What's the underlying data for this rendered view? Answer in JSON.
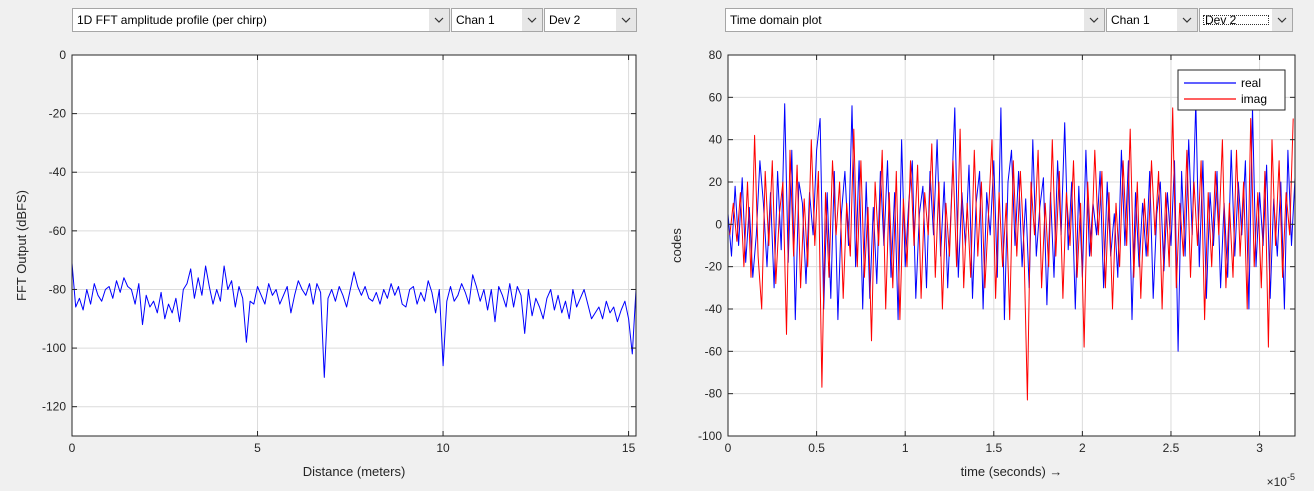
{
  "colors": {
    "real": "#0000ff",
    "imag": "#ff0000",
    "grid": "#dcdcdc",
    "axis": "#262626",
    "plot_bg": "#ffffff",
    "window_bg": "#f0f0f0"
  },
  "left_panel": {
    "plot_type_select": {
      "value": "1D FFT amplitude profile (per chirp)"
    },
    "channel_select": {
      "value": "Chan 1"
    },
    "device_select": {
      "value": "Dev 2"
    },
    "icons": {
      "dropdown": "chevron-down-icon"
    }
  },
  "right_panel": {
    "plot_type_select": {
      "value": "Time domain plot"
    },
    "channel_select": {
      "value": "Chan 1"
    },
    "device_select": {
      "value": "Dev 2"
    },
    "icons": {
      "dropdown": "chevron-down-icon"
    }
  },
  "chart_data": [
    {
      "type": "line",
      "xlabel": "Distance (meters)",
      "ylabel": "FFT Output (dBFS)",
      "xlim": [
        0,
        15.2
      ],
      "ylim": [
        -130,
        0
      ],
      "xticks": [
        0,
        5,
        10,
        15
      ],
      "xtick_labels": [
        "0",
        "5",
        "10",
        "15"
      ],
      "yticks": [
        0,
        -20,
        -40,
        -60,
        -80,
        -100,
        -120
      ],
      "ytick_labels": [
        "0",
        "-20",
        "-40",
        "-60",
        "-80",
        "-100",
        "-120"
      ],
      "grid": true,
      "series": [
        {
          "color": "#0000ff",
          "x": [
            0,
            0.1,
            0.2,
            0.3,
            0.4,
            0.5,
            0.6,
            0.7,
            0.8,
            0.9,
            1.0,
            1.1,
            1.2,
            1.3,
            1.4,
            1.5,
            1.6,
            1.7,
            1.8,
            1.9,
            2.0,
            2.1,
            2.2,
            2.3,
            2.4,
            2.5,
            2.6,
            2.7,
            2.8,
            2.9,
            3.0,
            3.1,
            3.2,
            3.3,
            3.4,
            3.5,
            3.6,
            3.7,
            3.8,
            3.9,
            4.0,
            4.1,
            4.2,
            4.3,
            4.4,
            4.5,
            4.6,
            4.7,
            4.8,
            4.9,
            5.0,
            5.1,
            5.2,
            5.3,
            5.4,
            5.5,
            5.6,
            5.7,
            5.8,
            5.9,
            6.0,
            6.1,
            6.2,
            6.3,
            6.4,
            6.5,
            6.6,
            6.7,
            6.8,
            6.9,
            7.0,
            7.1,
            7.2,
            7.3,
            7.4,
            7.5,
            7.6,
            7.7,
            7.8,
            7.9,
            8.0,
            8.1,
            8.2,
            8.3,
            8.4,
            8.5,
            8.6,
            8.7,
            8.8,
            8.9,
            9.0,
            9.1,
            9.2,
            9.3,
            9.4,
            9.5,
            9.6,
            9.7,
            9.8,
            9.9,
            10.0,
            10.1,
            10.2,
            10.3,
            10.4,
            10.5,
            10.6,
            10.7,
            10.8,
            10.9,
            11.0,
            11.1,
            11.2,
            11.3,
            11.4,
            11.5,
            11.6,
            11.7,
            11.8,
            11.9,
            12.0,
            12.1,
            12.2,
            12.3,
            12.4,
            12.5,
            12.6,
            12.7,
            12.8,
            12.9,
            13.0,
            13.1,
            13.2,
            13.3,
            13.4,
            13.5,
            13.6,
            13.7,
            13.8,
            13.9,
            14.0,
            14.1,
            14.2,
            14.3,
            14.4,
            14.5,
            14.6,
            14.7,
            14.8,
            14.9,
            15.0,
            15.1,
            15.2
          ],
          "y": [
            -71,
            -86,
            -83,
            -87,
            -80,
            -85,
            -78,
            -82,
            -84,
            -80,
            -79,
            -83,
            -77,
            -81,
            -76,
            -79,
            -80,
            -85,
            -78,
            -92,
            -82,
            -86,
            -84,
            -88,
            -81,
            -90,
            -85,
            -88,
            -83,
            -91,
            -80,
            -78,
            -73,
            -83,
            -76,
            -82,
            -72,
            -79,
            -85,
            -80,
            -84,
            -72,
            -80,
            -77,
            -86,
            -79,
            -83,
            -98,
            -84,
            -85,
            -79,
            -82,
            -85,
            -78,
            -82,
            -80,
            -85,
            -82,
            -79,
            -88,
            -82,
            -77,
            -80,
            -82,
            -78,
            -85,
            -78,
            -81,
            -110,
            -83,
            -80,
            -84,
            -79,
            -82,
            -86,
            -80,
            -74,
            -79,
            -82,
            -79,
            -83,
            -84,
            -81,
            -85,
            -80,
            -83,
            -78,
            -82,
            -79,
            -85,
            -86,
            -80,
            -79,
            -85,
            -81,
            -84,
            -77,
            -81,
            -88,
            -80,
            -106,
            -84,
            -79,
            -84,
            -82,
            -78,
            -81,
            -85,
            -75,
            -79,
            -84,
            -80,
            -87,
            -80,
            -91,
            -79,
            -82,
            -86,
            -78,
            -86,
            -79,
            -82,
            -95,
            -80,
            -89,
            -83,
            -86,
            -90,
            -83,
            -80,
            -87,
            -82,
            -88,
            -84,
            -90,
            -80,
            -86,
            -83,
            -80,
            -85,
            -90,
            -88,
            -86,
            -90,
            -84,
            -88,
            -86,
            -91,
            -87,
            -84,
            -90,
            -102,
            -80
          ]
        }
      ]
    },
    {
      "type": "line",
      "xlabel": "time  (seconds) →",
      "ylabel": "codes",
      "x_exponent": "×10",
      "x_exponent_power": "-5",
      "xlim": [
        0,
        3.2
      ],
      "ylim": [
        -100,
        80
      ],
      "xticks": [
        0,
        0.5,
        1,
        1.5,
        2,
        2.5,
        3
      ],
      "xtick_labels": [
        "0",
        "0.5",
        "1",
        "1.5",
        "2",
        "2.5",
        "3"
      ],
      "yticks": [
        80,
        60,
        40,
        20,
        0,
        -20,
        -40,
        -60,
        -80,
        -100
      ],
      "ytick_labels": [
        "80",
        "60",
        "40",
        "20",
        "0",
        "-20",
        "-40",
        "-60",
        "-80",
        "-100"
      ],
      "grid": true,
      "legend": {
        "position": "top-right",
        "entries": [
          "real",
          "imag"
        ]
      },
      "series": [
        {
          "name": "real",
          "color": "#0000ff",
          "x_start": 0,
          "x_step": 0.02,
          "y": [
            5,
            -15,
            18,
            -10,
            22,
            -18,
            8,
            -25,
            -5,
            30,
            10,
            -20,
            15,
            -30,
            25,
            -12,
            57,
            -18,
            35,
            -45,
            20,
            10,
            -28,
            15,
            -5,
            35,
            50,
            -40,
            15,
            -35,
            25,
            -45,
            5,
            25,
            -10,
            56,
            -20,
            30,
            -40,
            20,
            -35,
            8,
            -28,
            25,
            -10,
            30,
            -25,
            15,
            -45,
            40,
            -20,
            10,
            30,
            -35,
            5,
            18,
            -30,
            25,
            -5,
            40,
            -15,
            20,
            -30,
            10,
            55,
            -25,
            15,
            -10,
            28,
            -35,
            10,
            25,
            -40,
            15,
            -5,
            30,
            -25,
            55,
            -45,
            20,
            35,
            -10,
            25,
            -20,
            12,
            -30,
            40,
            -15,
            8,
            22,
            -38,
            15,
            -25,
            30,
            -5,
            48,
            -12,
            20,
            -40,
            18,
            -25,
            35,
            -15,
            10,
            -5,
            25,
            -30,
            20,
            -15,
            5,
            -25,
            35,
            -10,
            30,
            -45,
            15,
            -20,
            10,
            -15,
            25,
            -35,
            5,
            20,
            -22,
            15,
            -10,
            30,
            -60,
            25,
            -15,
            40,
            -5,
            58,
            -20,
            30,
            -35,
            15,
            -10,
            25,
            -30,
            10,
            -25,
            35,
            -15,
            20,
            -5,
            30,
            -40,
            55,
            -20,
            15,
            -10,
            28,
            -35,
            12,
            -15,
            20,
            -40,
            35,
            -10,
            22,
            -28,
            15,
            -5,
            40,
            -30,
            25,
            -15,
            10,
            -25,
            42,
            -10,
            25
          ]
        },
        {
          "name": "imag",
          "color": "#ff0000",
          "x_start": 0.01,
          "x_step": 0.02,
          "y": [
            -5,
            10,
            -8,
            15,
            -20,
            20,
            -25,
            42,
            -15,
            -40,
            25,
            -10,
            30,
            -28,
            5,
            20,
            -52,
            35,
            -15,
            28,
            -30,
            12,
            -20,
            40,
            -10,
            25,
            -77,
            15,
            -25,
            30,
            -5,
            20,
            -35,
            10,
            -15,
            45,
            -20,
            30,
            -25,
            8,
            -55,
            20,
            -10,
            35,
            -40,
            15,
            -30,
            25,
            -45,
            12,
            -20,
            30,
            -10,
            28,
            -35,
            15,
            -5,
            38,
            -25,
            20,
            -40,
            10,
            -15,
            30,
            -20,
            45,
            -30,
            10,
            -25,
            35,
            -15,
            20,
            -30,
            5,
            40,
            -35,
            15,
            -20,
            10,
            -45,
            30,
            -15,
            25,
            -10,
            -83,
            20,
            -5,
            35,
            -30,
            10,
            -20,
            40,
            -15,
            25,
            -35,
            15,
            -10,
            30,
            -25,
            10,
            -58,
            20,
            -15,
            35,
            -5,
            25,
            -30,
            15,
            -40,
            10,
            -20,
            30,
            -10,
            45,
            -25,
            20,
            -35,
            12,
            -15,
            30,
            -5,
            25,
            -40,
            15,
            -20,
            55,
            -30,
            10,
            -15,
            35,
            -25,
            20,
            -10,
            30,
            -45,
            15,
            -20,
            25,
            -5,
            40,
            -30,
            10,
            -25,
            35,
            -15,
            20,
            -40,
            50,
            -20,
            15,
            -30,
            25,
            -58,
            40,
            -10,
            30,
            -25,
            15,
            -5,
            50
          ]
        }
      ]
    }
  ]
}
